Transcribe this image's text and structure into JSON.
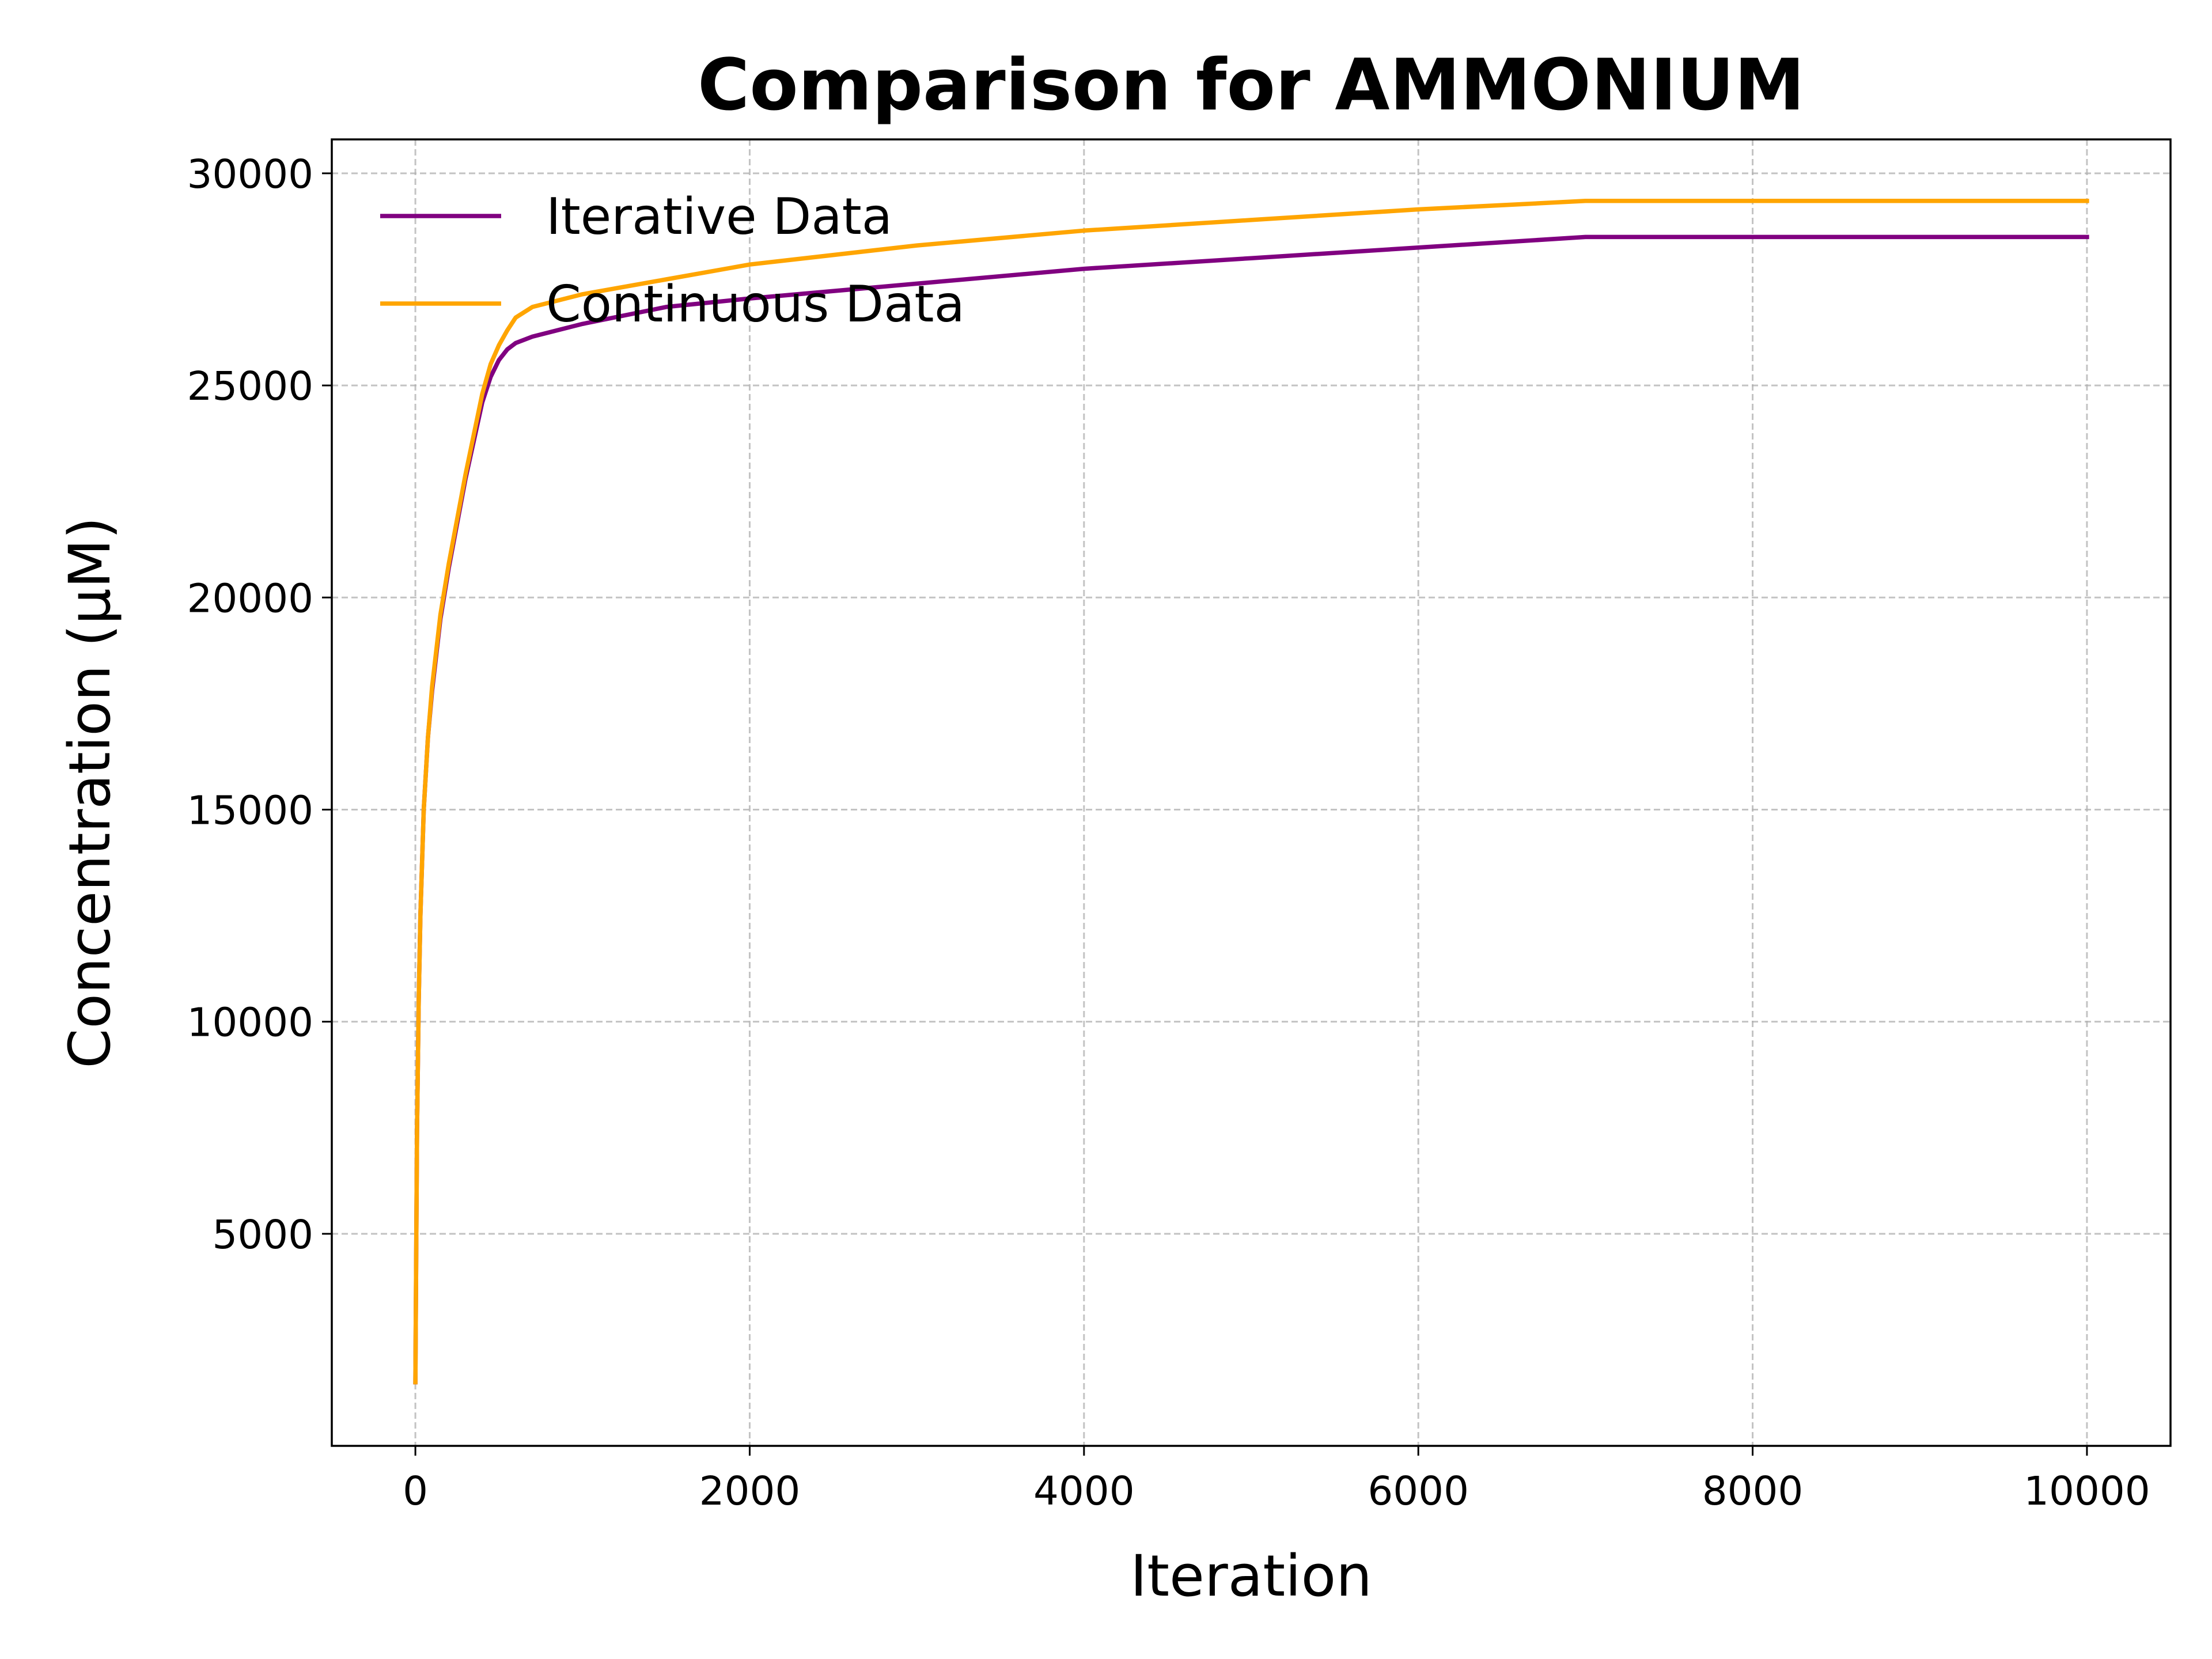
{
  "chart_data": {
    "type": "line",
    "title": "Comparison for AMMONIUM",
    "xlabel": "Iteration",
    "ylabel": "Concentration (μM)",
    "xlim": [
      -500,
      10500
    ],
    "ylim": [
      0,
      30800
    ],
    "xticks": [
      0,
      2000,
      4000,
      6000,
      8000,
      10000
    ],
    "xtick_labels": [
      "0",
      "2000",
      "4000",
      "6000",
      "8000",
      "10000"
    ],
    "yticks": [
      5000,
      10000,
      15000,
      20000,
      25000,
      30000
    ],
    "ytick_labels": [
      "5000",
      "10000",
      "15000",
      "20000",
      "25000",
      "30000"
    ],
    "grid": true,
    "legend_position": "top-left",
    "series": [
      {
        "name": "Iterative Data",
        "color": "#800080",
        "x": [
          0,
          5,
          10,
          20,
          30,
          50,
          75,
          100,
          150,
          200,
          300,
          400,
          450,
          500,
          550,
          600,
          700,
          800,
          1000,
          1500,
          2000,
          3000,
          4000,
          5000,
          6000,
          7000,
          8000,
          9000,
          10000
        ],
        "y": [
          1500,
          4500,
          7500,
          10500,
          12500,
          15000,
          16700,
          17800,
          19500,
          20700,
          22800,
          24600,
          25200,
          25600,
          25850,
          26000,
          26150,
          26250,
          26450,
          26850,
          27050,
          27400,
          27750,
          28000,
          28250,
          28500,
          28500,
          28500,
          28500
        ]
      },
      {
        "name": "Continuous Data",
        "color": "#FFA500",
        "x": [
          0,
          5,
          10,
          20,
          30,
          50,
          75,
          100,
          150,
          200,
          300,
          400,
          450,
          500,
          550,
          600,
          700,
          800,
          1000,
          1500,
          2000,
          3000,
          4000,
          5000,
          6000,
          7000,
          8000,
          9000,
          10000
        ],
        "y": [
          1500,
          4500,
          7500,
          10500,
          12500,
          15000,
          16700,
          17900,
          19600,
          20800,
          22900,
          24800,
          25500,
          25950,
          26300,
          26600,
          26850,
          26950,
          27150,
          27500,
          27850,
          28300,
          28650,
          28900,
          29150,
          29350,
          29350,
          29350,
          29350
        ]
      }
    ]
  }
}
